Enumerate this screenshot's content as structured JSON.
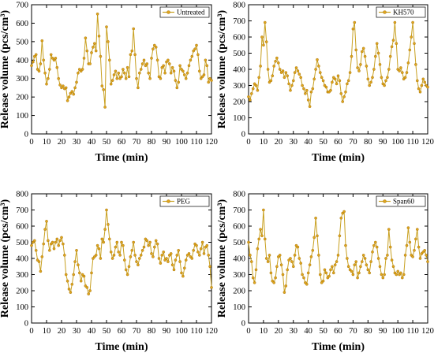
{
  "colors": {
    "series": "#C8A020",
    "marker_fill": "#E0A51E",
    "marker_edge": "#9A6A00",
    "axis": "#000000"
  },
  "chart_data": [
    {
      "type": "line",
      "legend_location": "top-right",
      "grid": false,
      "xlabel": "Time (min)",
      "ylabel": "Release volume (pcs/cm³)",
      "xlim": [
        0,
        120
      ],
      "ylim": [
        0,
        700
      ],
      "xticks": [
        0,
        10,
        20,
        30,
        40,
        50,
        60,
        70,
        80,
        90,
        100,
        110,
        120
      ],
      "yticks": [
        0,
        100,
        200,
        300,
        400,
        500,
        600,
        700
      ],
      "series": [
        {
          "name": "Untreated",
          "x": [
            0,
            1,
            2,
            3,
            4,
            5,
            6,
            7,
            8,
            9,
            10,
            11,
            12,
            13,
            14,
            15,
            16,
            17,
            18,
            19,
            20,
            21,
            22,
            23,
            24,
            25,
            26,
            27,
            28,
            29,
            30,
            31,
            32,
            33,
            34,
            35,
            36,
            37,
            38,
            39,
            40,
            41,
            42,
            43,
            44,
            45,
            46,
            47,
            48,
            49,
            50,
            51,
            52,
            53,
            54,
            55,
            56,
            57,
            58,
            59,
            60,
            61,
            62,
            63,
            64,
            65,
            66,
            67,
            68,
            69,
            70,
            71,
            72,
            73,
            74,
            75,
            76,
            77,
            78,
            79,
            80,
            81,
            82,
            83,
            84,
            85,
            86,
            87,
            88,
            89,
            90,
            91,
            92,
            93,
            94,
            95,
            96,
            97,
            98,
            99,
            100,
            101,
            102,
            103,
            104,
            105,
            106,
            107,
            108,
            109,
            110,
            111,
            112,
            113,
            114,
            115,
            116,
            117,
            118,
            119,
            120
          ],
          "values": [
            370,
            390,
            420,
            430,
            350,
            340,
            380,
            505,
            400,
            330,
            270,
            300,
            350,
            430,
            410,
            400,
            410,
            360,
            300,
            265,
            250,
            260,
            245,
            250,
            180,
            200,
            220,
            230,
            215,
            250,
            280,
            330,
            350,
            340,
            350,
            410,
            520,
            450,
            380,
            380,
            440,
            470,
            490,
            450,
            650,
            530,
            420,
            260,
            240,
            145,
            580,
            500,
            400,
            270,
            290,
            320,
            340,
            300,
            330,
            300,
            310,
            350,
            330,
            300,
            360,
            310,
            430,
            450,
            570,
            430,
            300,
            250,
            330,
            350,
            380,
            400,
            370,
            380,
            330,
            300,
            410,
            460,
            480,
            470,
            400,
            310,
            300,
            360,
            370,
            330,
            390,
            400,
            380,
            330,
            360,
            340,
            290,
            250,
            280,
            370,
            350,
            340,
            320,
            300,
            330,
            370,
            400,
            420,
            450,
            460,
            480,
            430,
            340,
            300,
            310,
            320,
            400,
            370,
            280,
            300,
            290
          ]
        }
      ]
    },
    {
      "type": "line",
      "legend_location": "top-right",
      "grid": false,
      "xlabel": "Time (min)",
      "ylabel": "Release volume (pcs/cm³)",
      "xlim": [
        0,
        120
      ],
      "ylim": [
        0,
        800
      ],
      "xticks": [
        0,
        10,
        20,
        30,
        40,
        50,
        60,
        70,
        80,
        90,
        100,
        110,
        120
      ],
      "yticks": [
        0,
        100,
        200,
        300,
        400,
        500,
        600,
        700,
        800
      ],
      "series": [
        {
          "name": "KH570",
          "x": [
            0,
            1,
            2,
            3,
            4,
            5,
            6,
            7,
            8,
            9,
            10,
            11,
            12,
            13,
            14,
            15,
            16,
            17,
            18,
            19,
            20,
            21,
            22,
            23,
            24,
            25,
            26,
            27,
            28,
            29,
            30,
            31,
            32,
            33,
            34,
            35,
            36,
            37,
            38,
            39,
            40,
            41,
            42,
            43,
            44,
            45,
            46,
            47,
            48,
            49,
            50,
            51,
            52,
            53,
            54,
            55,
            56,
            57,
            58,
            59,
            60,
            61,
            62,
            63,
            64,
            65,
            66,
            67,
            68,
            69,
            70,
            71,
            72,
            73,
            74,
            75,
            76,
            77,
            78,
            79,
            80,
            81,
            82,
            83,
            84,
            85,
            86,
            87,
            88,
            89,
            90,
            91,
            92,
            93,
            94,
            95,
            96,
            97,
            98,
            99,
            100,
            101,
            102,
            103,
            104,
            105,
            106,
            107,
            108,
            109,
            110,
            111,
            112,
            113,
            114,
            115,
            116,
            117,
            118,
            119,
            120
          ],
          "values": [
            230,
            210,
            250,
            280,
            310,
            300,
            270,
            350,
            420,
            600,
            550,
            690,
            570,
            400,
            320,
            330,
            360,
            420,
            450,
            470,
            440,
            400,
            380,
            390,
            350,
            380,
            360,
            310,
            270,
            300,
            330,
            380,
            410,
            390,
            370,
            350,
            300,
            280,
            250,
            270,
            210,
            170,
            260,
            280,
            340,
            400,
            460,
            420,
            380,
            350,
            330,
            300,
            290,
            260,
            260,
            270,
            320,
            350,
            340,
            310,
            360,
            330,
            250,
            200,
            230,
            260,
            310,
            330,
            380,
            480,
            650,
            690,
            520,
            410,
            390,
            430,
            510,
            530,
            480,
            420,
            340,
            300,
            320,
            350,
            400,
            480,
            560,
            500,
            430,
            350,
            310,
            300,
            330,
            350,
            400,
            480,
            540,
            580,
            690,
            560,
            400,
            390,
            410,
            380,
            340,
            350,
            380,
            440,
            520,
            600,
            690,
            560,
            430,
            330,
            280,
            260,
            300,
            340,
            320,
            300,
            290
          ]
        }
      ]
    },
    {
      "type": "line",
      "legend_location": "top-right",
      "grid": false,
      "xlabel": "Time (min)",
      "ylabel": "Release volume (pcs/cm³)",
      "xlim": [
        0,
        120
      ],
      "ylim": [
        0,
        800
      ],
      "xticks": [
        0,
        10,
        20,
        30,
        40,
        50,
        60,
        70,
        80,
        90,
        100,
        110,
        120
      ],
      "yticks": [
        0,
        100,
        200,
        300,
        400,
        500,
        600,
        700,
        800
      ],
      "series": [
        {
          "name": "PEG",
          "x": [
            0,
            1,
            2,
            3,
            4,
            5,
            6,
            7,
            8,
            9,
            10,
            11,
            12,
            13,
            14,
            15,
            16,
            17,
            18,
            19,
            20,
            21,
            22,
            23,
            24,
            25,
            26,
            27,
            28,
            29,
            30,
            31,
            32,
            33,
            34,
            35,
            36,
            37,
            38,
            39,
            40,
            41,
            42,
            43,
            44,
            45,
            46,
            47,
            48,
            49,
            50,
            51,
            52,
            53,
            54,
            55,
            56,
            57,
            58,
            59,
            60,
            61,
            62,
            63,
            64,
            65,
            66,
            67,
            68,
            69,
            70,
            71,
            72,
            73,
            74,
            75,
            76,
            77,
            78,
            79,
            80,
            81,
            82,
            83,
            84,
            85,
            86,
            87,
            88,
            89,
            90,
            91,
            92,
            93,
            94,
            95,
            96,
            97,
            98,
            99,
            100,
            101,
            102,
            103,
            104,
            105,
            106,
            107,
            108,
            109,
            110,
            111,
            112,
            113,
            114,
            115,
            116,
            117,
            118,
            119,
            120
          ],
          "values": [
            480,
            500,
            510,
            450,
            390,
            380,
            320,
            410,
            490,
            580,
            630,
            510,
            450,
            490,
            500,
            460,
            500,
            520,
            480,
            510,
            530,
            490,
            420,
            300,
            260,
            210,
            190,
            240,
            300,
            380,
            450,
            360,
            310,
            260,
            300,
            290,
            230,
            220,
            180,
            200,
            310,
            400,
            410,
            420,
            480,
            460,
            400,
            520,
            500,
            580,
            700,
            610,
            520,
            440,
            400,
            420,
            470,
            500,
            440,
            420,
            500,
            480,
            390,
            330,
            300,
            350,
            410,
            450,
            500,
            420,
            380,
            360,
            400,
            420,
            450,
            470,
            520,
            510,
            480,
            500,
            430,
            410,
            470,
            510,
            490,
            400,
            370,
            420,
            440,
            390,
            400,
            380,
            420,
            430,
            360,
            330,
            390,
            420,
            450,
            380,
            310,
            290,
            340,
            390,
            420,
            430,
            410,
            400,
            450,
            490,
            480,
            440,
            420,
            460,
            500,
            430,
            470,
            480,
            420,
            350,
            220
          ]
        }
      ]
    },
    {
      "type": "line",
      "legend_location": "top-right",
      "grid": false,
      "xlabel": "Time (min)",
      "ylabel": "Release volume (pcs/cm³)",
      "xlim": [
        0,
        120
      ],
      "ylim": [
        0,
        800
      ],
      "xticks": [
        0,
        10,
        20,
        30,
        40,
        50,
        60,
        70,
        80,
        90,
        100,
        110,
        120
      ],
      "yticks": [
        0,
        100,
        200,
        300,
        400,
        500,
        600,
        700,
        800
      ],
      "series": [
        {
          "name": "Span60",
          "x": [
            0,
            1,
            2,
            3,
            4,
            5,
            6,
            7,
            8,
            9,
            10,
            11,
            12,
            13,
            14,
            15,
            16,
            17,
            18,
            19,
            20,
            21,
            22,
            23,
            24,
            25,
            26,
            27,
            28,
            29,
            30,
            31,
            32,
            33,
            34,
            35,
            36,
            37,
            38,
            39,
            40,
            41,
            42,
            43,
            44,
            45,
            46,
            47,
            48,
            49,
            50,
            51,
            52,
            53,
            54,
            55,
            56,
            57,
            58,
            59,
            60,
            61,
            62,
            63,
            64,
            65,
            66,
            67,
            68,
            69,
            70,
            71,
            72,
            73,
            74,
            75,
            76,
            77,
            78,
            79,
            80,
            81,
            82,
            83,
            84,
            85,
            86,
            87,
            88,
            89,
            90,
            91,
            92,
            93,
            94,
            95,
            96,
            97,
            98,
            99,
            100,
            101,
            102,
            103,
            104,
            105,
            106,
            107,
            108,
            109,
            110,
            111,
            112,
            113,
            114,
            115,
            116,
            117,
            118,
            119,
            120
          ],
          "values": [
            500,
            420,
            380,
            280,
            250,
            330,
            460,
            520,
            580,
            540,
            700,
            520,
            400,
            380,
            420,
            310,
            260,
            250,
            280,
            350,
            410,
            420,
            360,
            300,
            190,
            230,
            330,
            390,
            400,
            380,
            350,
            420,
            480,
            470,
            400,
            370,
            300,
            280,
            250,
            240,
            310,
            360,
            410,
            450,
            530,
            650,
            540,
            420,
            300,
            250,
            260,
            330,
            310,
            280,
            290,
            330,
            350,
            310,
            360,
            380,
            420,
            540,
            650,
            680,
            690,
            480,
            400,
            350,
            330,
            320,
            300,
            360,
            380,
            280,
            310,
            350,
            380,
            420,
            400,
            360,
            330,
            310,
            380,
            440,
            480,
            500,
            470,
            400,
            350,
            300,
            280,
            300,
            400,
            420,
            580,
            470,
            390,
            350,
            310,
            300,
            320,
            300,
            310,
            280,
            300,
            420,
            480,
            590,
            500,
            420,
            410,
            450,
            520,
            580,
            470,
            400,
            430,
            440,
            450,
            420,
            380
          ]
        }
      ]
    }
  ]
}
